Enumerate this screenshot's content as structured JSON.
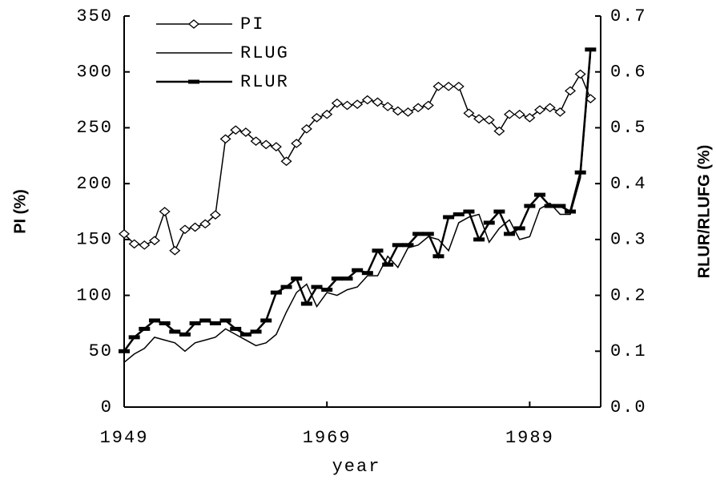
{
  "chart_data": {
    "type": "line",
    "x_label": "year",
    "y_label": "PI (%)",
    "y2_label": "RLUR/RLUFG (%)",
    "x": [
      1949,
      1950,
      1951,
      1952,
      1953,
      1954,
      1955,
      1956,
      1957,
      1958,
      1959,
      1960,
      1961,
      1962,
      1963,
      1964,
      1965,
      1966,
      1967,
      1968,
      1969,
      1970,
      1971,
      1972,
      1973,
      1974,
      1975,
      1976,
      1977,
      1978,
      1979,
      1980,
      1981,
      1982,
      1983,
      1984,
      1985,
      1986,
      1987,
      1988,
      1989,
      1990,
      1991,
      1992,
      1993,
      1994,
      1995
    ],
    "xlim": [
      1949,
      1996
    ],
    "xticks": [
      1949,
      1969,
      1989
    ],
    "ylim": [
      0,
      350
    ],
    "yticks": [
      0,
      50,
      100,
      150,
      200,
      250,
      300,
      350
    ],
    "y2lim": [
      0,
      0.7
    ],
    "y2ticks": [
      {
        "value": 0,
        "label": "0.0"
      },
      {
        "value": 0.1,
        "label": "0.1"
      },
      {
        "value": 0.2,
        "label": "0.2"
      },
      {
        "value": 0.3,
        "label": "0.3"
      },
      {
        "value": 0.4,
        "label": "0.4"
      },
      {
        "value": 0.5,
        "label": "0.5"
      },
      {
        "value": 0.6,
        "label": "0.6"
      },
      {
        "value": 0.7,
        "label": "0.7"
      }
    ],
    "series": [
      {
        "name": "PI",
        "color": "#000000",
        "marker": "diamond",
        "values": [
          155,
          146,
          145,
          149,
          175,
          140,
          159,
          161,
          164,
          172,
          240,
          248,
          246,
          238,
          235,
          233,
          220,
          236,
          249,
          259,
          262,
          272,
          270,
          271,
          275,
          273,
          269,
          265,
          264,
          268,
          270,
          287,
          287,
          287,
          263,
          258,
          257,
          247,
          262,
          262,
          259,
          266,
          268,
          264,
          283,
          298,
          276
        ]
      },
      {
        "name": "RLUG",
        "color": "#000000",
        "axis": "y2",
        "values": [
          0.08,
          0.095,
          0.105,
          0.125,
          0.12,
          0.115,
          0.1,
          0.115,
          0.12,
          0.125,
          0.14,
          0.13,
          0.12,
          0.11,
          0.115,
          0.13,
          0.17,
          0.205,
          0.22,
          0.18,
          0.205,
          0.2,
          0.21,
          0.215,
          0.235,
          0.235,
          0.27,
          0.25,
          0.285,
          0.29,
          0.305,
          0.3,
          0.28,
          0.33,
          0.34,
          0.345,
          0.295,
          0.32,
          0.335,
          0.3,
          0.305,
          0.355,
          0.365,
          0.345,
          0.345,
          0.41,
          0.63
        ]
      },
      {
        "name": "RLUR",
        "color": "#000000",
        "axis": "y2",
        "marker": "dash",
        "values": [
          0.1,
          0.125,
          0.14,
          0.155,
          0.15,
          0.135,
          0.13,
          0.15,
          0.155,
          0.15,
          0.155,
          0.14,
          0.13,
          0.135,
          0.155,
          0.205,
          0.215,
          0.23,
          0.185,
          0.215,
          0.21,
          0.23,
          0.23,
          0.245,
          0.24,
          0.28,
          0.255,
          0.29,
          0.29,
          0.31,
          0.31,
          0.27,
          0.34,
          0.345,
          0.35,
          0.3,
          0.33,
          0.35,
          0.31,
          0.32,
          0.36,
          0.38,
          0.36,
          0.36,
          0.35,
          0.42,
          0.64
        ]
      }
    ]
  }
}
